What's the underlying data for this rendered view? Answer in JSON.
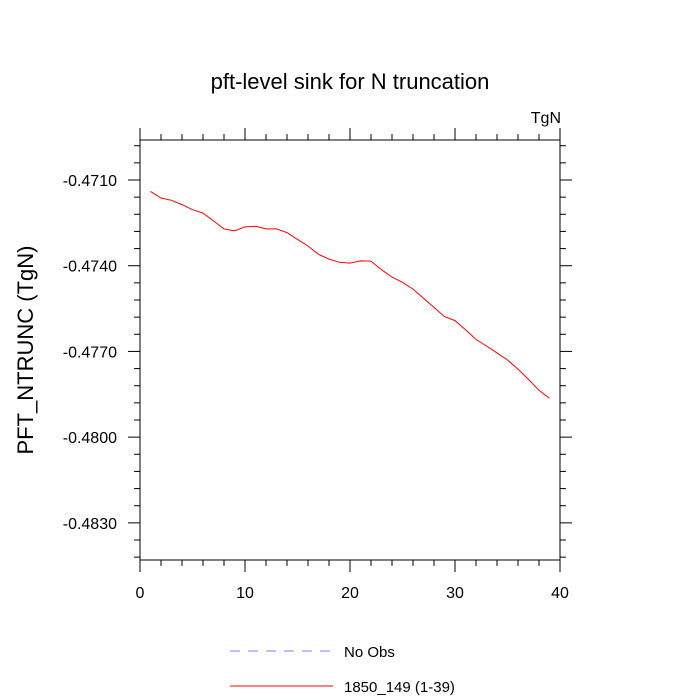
{
  "chart_data": {
    "type": "line",
    "title": "pft-level sink for N truncation",
    "units_label": "TgN",
    "ylabel": "PFT_NTRUNC  (TgN)",
    "xlabel": "",
    "xlim": [
      0,
      40
    ],
    "ylim": [
      -0.4843,
      -0.4696
    ],
    "x_ticks": [
      0,
      10,
      20,
      30,
      40
    ],
    "x_tick_labels": [
      "0",
      "10",
      "20",
      "30",
      "40"
    ],
    "y_ticks": [
      -0.471,
      -0.474,
      -0.477,
      -0.48,
      -0.483
    ],
    "y_tick_labels": [
      "-0.4710",
      "-0.4740",
      "-0.4770",
      "-0.4800",
      "-0.4830"
    ],
    "grid": false,
    "legend_position": "bottom",
    "legend": [
      {
        "label": "No Obs",
        "color": "#8080ff",
        "dash": true
      },
      {
        "label": "1850_149 (1-39)",
        "color": "#ff0000",
        "dash": false
      }
    ],
    "series": [
      {
        "name": "1850_149 (1-39)",
        "color": "#ff0000",
        "x": [
          1,
          2,
          3,
          4,
          5,
          6,
          7,
          8,
          9,
          10,
          11,
          12,
          13,
          14,
          15,
          16,
          17,
          18,
          19,
          20,
          21,
          22,
          23,
          24,
          25,
          26,
          27,
          28,
          29,
          30,
          31,
          32,
          33,
          34,
          35,
          36,
          37,
          38,
          39
        ],
        "values": [
          -0.4714,
          -0.47163,
          -0.47171,
          -0.47186,
          -0.47204,
          -0.47216,
          -0.47243,
          -0.47271,
          -0.47278,
          -0.47264,
          -0.47262,
          -0.47271,
          -0.47271,
          -0.47284,
          -0.47308,
          -0.47331,
          -0.4736,
          -0.47377,
          -0.47388,
          -0.47391,
          -0.47383,
          -0.47384,
          -0.47414,
          -0.4744,
          -0.47458,
          -0.47482,
          -0.47514,
          -0.47546,
          -0.47578,
          -0.47592,
          -0.47624,
          -0.47658,
          -0.47681,
          -0.47705,
          -0.4773,
          -0.47762,
          -0.47798,
          -0.47836,
          -0.47864
        ]
      }
    ]
  }
}
